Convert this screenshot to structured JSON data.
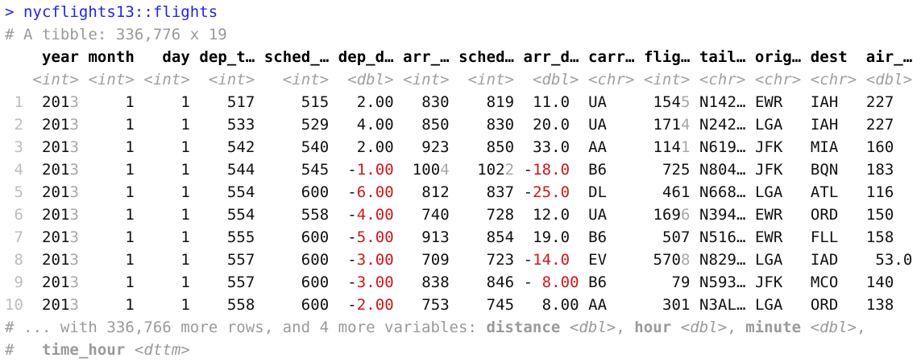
{
  "console": {
    "prompt": ">",
    "command": "nycflights13::flights",
    "summary": "# A tibble: 336,776 x 19",
    "colors": {
      "prompt": "#2323e6",
      "comment": "#9a9a9a",
      "negative": "#d0161b",
      "insignificant": "#a8a8a8"
    }
  },
  "table": {
    "columns": [
      {
        "header": "year",
        "type": "<int>"
      },
      {
        "header": "month",
        "type": "<int>"
      },
      {
        "header": "day",
        "type": "<int>"
      },
      {
        "header": "dep_t…",
        "type": "<int>"
      },
      {
        "header": "sched_…",
        "type": "<int>"
      },
      {
        "header": "dep_d…",
        "type": "<dbl>"
      },
      {
        "header": "arr_…",
        "type": "<int>"
      },
      {
        "header": "sched…",
        "type": "<int>"
      },
      {
        "header": "arr_d…",
        "type": "<dbl>"
      },
      {
        "header": "carr…",
        "type": "<chr>"
      },
      {
        "header": "flig…",
        "type": "<int>"
      },
      {
        "header": "tail…",
        "type": "<chr>"
      },
      {
        "header": "orig…",
        "type": "<chr>"
      },
      {
        "header": "dest",
        "type": "<chr>"
      },
      {
        "header": "air_…",
        "type": "<dbl>"
      }
    ],
    "rows": [
      [
        "1",
        [
          "2013",
          "1",
          "1",
          "517",
          "515",
          "2.00",
          "830",
          "819",
          "11.0",
          "UA",
          "1545",
          "N142…",
          "EWR",
          "IAH",
          "227"
        ]
      ],
      [
        "2",
        [
          "2013",
          "1",
          "1",
          "533",
          "529",
          "4.00",
          "850",
          "830",
          "20.0",
          "UA",
          "1714",
          "N242…",
          "LGA",
          "IAH",
          "227"
        ]
      ],
      [
        "3",
        [
          "2013",
          "1",
          "1",
          "542",
          "540",
          "2.00",
          "923",
          "850",
          "33.0",
          "AA",
          "1141",
          "N619…",
          "JFK",
          "MIA",
          "160"
        ]
      ],
      [
        "4",
        [
          "2013",
          "1",
          "1",
          "544",
          "545",
          "-1.00",
          "1004",
          "1022",
          "-18.0",
          "B6",
          "725",
          "N804…",
          "JFK",
          "BQN",
          "183"
        ]
      ],
      [
        "5",
        [
          "2013",
          "1",
          "1",
          "554",
          "600",
          "-6.00",
          "812",
          "837",
          "-25.0",
          "DL",
          "461",
          "N668…",
          "LGA",
          "ATL",
          "116"
        ]
      ],
      [
        "6",
        [
          "2013",
          "1",
          "1",
          "554",
          "558",
          "-4.00",
          "740",
          "728",
          "12.0",
          "UA",
          "1696",
          "N394…",
          "EWR",
          "ORD",
          "150"
        ]
      ],
      [
        "7",
        [
          "2013",
          "1",
          "1",
          "555",
          "600",
          "-5.00",
          "913",
          "854",
          "19.0",
          "B6",
          "507",
          "N516…",
          "EWR",
          "FLL",
          "158"
        ]
      ],
      [
        "8",
        [
          "2013",
          "1",
          "1",
          "557",
          "600",
          "-3.00",
          "709",
          "723",
          "-14.0",
          "EV",
          "5708",
          "N829…",
          "LGA",
          "IAD",
          "53.0"
        ]
      ],
      [
        "9",
        [
          "2013",
          "1",
          "1",
          "557",
          "600",
          "-3.00",
          "838",
          "846",
          "- 8.00",
          "B6",
          "79",
          "N593…",
          "JFK",
          "MCO",
          "140"
        ]
      ],
      [
        "10",
        [
          "2013",
          "1",
          "1",
          "558",
          "600",
          "-2.00",
          "753",
          "745",
          "8.00",
          "AA",
          "301",
          "N3AL…",
          "LGA",
          "ORD",
          "138"
        ]
      ]
    ]
  },
  "footer": {
    "line1_prefix": "# ... with 336,766 more rows, and 4 more variables: ",
    "vars": [
      {
        "name": "distance",
        "type": "<dbl>",
        "sep": ", "
      },
      {
        "name": "hour",
        "type": "<dbl>",
        "sep": ", "
      },
      {
        "name": "minute",
        "type": "<dbl>",
        "sep": ","
      }
    ],
    "line2_prefix": "#   ",
    "last_var": {
      "name": "time_hour",
      "type": "<dttm>"
    }
  }
}
